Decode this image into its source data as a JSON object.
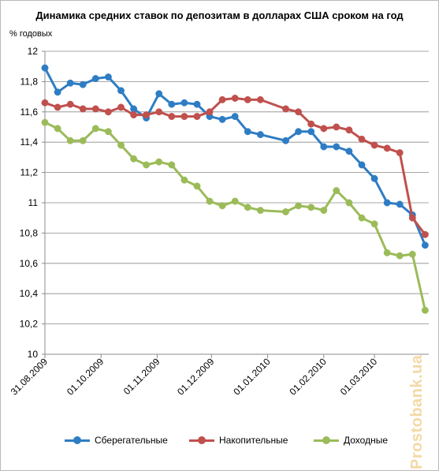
{
  "chart_data": {
    "type": "line",
    "title": "Динамика средних ставок по депозитам в долларах США сроком на год",
    "ylabel": "% годовых",
    "ylim": [
      10,
      12
    ],
    "yticks": [
      "10",
      "10,2",
      "10,4",
      "10,6",
      "10,8",
      "11",
      "11,2",
      "11,4",
      "11,6",
      "11,8",
      "12"
    ],
    "ytick_values": [
      10,
      10.2,
      10.4,
      10.6,
      10.8,
      11,
      11.2,
      11.4,
      11.6,
      11.8,
      12
    ],
    "x_dates": [
      "2009-08-31",
      "2009-09-07",
      "2009-09-14",
      "2009-09-21",
      "2009-09-28",
      "2009-10-05",
      "2009-10-12",
      "2009-10-19",
      "2009-10-26",
      "2009-11-02",
      "2009-11-09",
      "2009-11-16",
      "2009-11-23",
      "2009-11-30",
      "2009-12-07",
      "2009-12-14",
      "2009-12-21",
      "2009-12-28",
      "2010-01-11",
      "2010-01-18",
      "2010-01-25",
      "2010-02-01",
      "2010-02-08",
      "2010-02-15",
      "2010-02-22",
      "2010-03-01",
      "2010-03-08",
      "2010-03-15",
      "2010-03-22",
      "2010-03-29"
    ],
    "xtick_labels": [
      "31.08.2009",
      "01.10.2009",
      "01.11.2009",
      "01.12.2009",
      "01.01.2010",
      "01.02.2010",
      "01.03.2010"
    ],
    "xtick_dates": [
      "2009-08-31",
      "2009-10-01",
      "2009-11-01",
      "2009-12-01",
      "2010-01-01",
      "2010-02-01",
      "2010-03-01"
    ],
    "xlim": [
      "2009-08-31",
      "2010-03-31"
    ],
    "grid": "horizontal",
    "legend_position": "bottom",
    "series": [
      {
        "name": "Сберегательные",
        "color": "#2e7dc4",
        "values": [
          11.89,
          11.73,
          11.79,
          11.78,
          11.82,
          11.83,
          11.74,
          11.62,
          11.56,
          11.72,
          11.65,
          11.66,
          11.65,
          11.57,
          11.55,
          11.57,
          11.47,
          11.45,
          11.41,
          11.47,
          11.47,
          11.37,
          11.37,
          11.34,
          11.25,
          11.16,
          11.0,
          10.99,
          10.92,
          10.72
        ]
      },
      {
        "name": "Накопительные",
        "color": "#c0504d",
        "values": [
          11.66,
          11.63,
          11.65,
          11.62,
          11.62,
          11.6,
          11.63,
          11.58,
          11.58,
          11.6,
          11.57,
          11.57,
          11.57,
          11.6,
          11.68,
          11.69,
          11.68,
          11.68,
          11.62,
          11.6,
          11.52,
          11.49,
          11.5,
          11.48,
          11.42,
          11.38,
          11.36,
          11.33,
          10.9,
          10.79
        ]
      },
      {
        "name": "Доходные",
        "color": "#9bbb59",
        "values": [
          11.53,
          11.49,
          11.41,
          11.41,
          11.49,
          11.47,
          11.38,
          11.29,
          11.25,
          11.27,
          11.25,
          11.15,
          11.11,
          11.01,
          10.98,
          11.01,
          10.97,
          10.95,
          10.94,
          10.98,
          10.97,
          10.95,
          11.08,
          11.0,
          10.9,
          10.86,
          10.67,
          10.65,
          10.66,
          10.29
        ]
      }
    ]
  },
  "watermark": "Prostobank.ua"
}
